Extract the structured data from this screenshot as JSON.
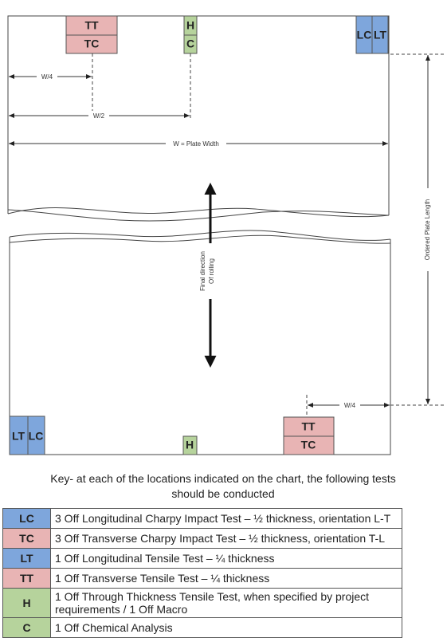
{
  "top_markers": {
    "tt": "TT",
    "tc": "TC",
    "h": "H",
    "c": "C",
    "lc": "LC",
    "lt": "LT"
  },
  "dimensions": {
    "quarter_width": "W/4",
    "half_width": "W/2",
    "plate_width": "W = Plate Width",
    "plate_length": "Ordered Plate Length",
    "bottom_quarter_width": "W/4"
  },
  "rolling_direction": [
    "Final direction",
    "Of rolling"
  ],
  "bottom_markers": {
    "lt": "LT",
    "lc": "LC",
    "h": "H",
    "tt": "TT",
    "tc": "TC"
  },
  "key": {
    "heading": "Key- at each of the locations indicated on the chart, the following tests should be conducted"
  },
  "table": {
    "rows": [
      [
        "LC",
        "3 Off Longitudinal Charpy Impact Test – ½ thickness, orientation L-T"
      ],
      [
        "TC",
        "3 Off Transverse Charpy Impact Test – ½ thickness, orientation T-L"
      ],
      [
        "LT",
        "1 Off Longitudinal Tensile Test – ¼  thickness"
      ],
      [
        "TT",
        "1 Off Transverse Tensile Test – ¼ thickness"
      ],
      [
        "H",
        "1 Off Through Thickness Tensile Test, when specified by project requirements / 1 Off Macro"
      ],
      [
        "C",
        "1 Off Chemical Analysis"
      ]
    ]
  }
}
